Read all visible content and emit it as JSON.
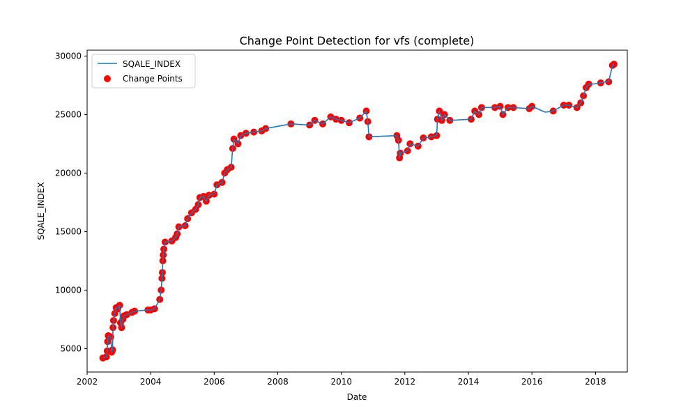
{
  "chart_data": {
    "type": "line",
    "title": "Change Point Detection for vfs (complete)",
    "xlabel": "Date",
    "ylabel": "SQALE_INDEX",
    "xlim": [
      "2002-01-01",
      "2019-01-01"
    ],
    "ylim": [
      3000,
      30500
    ],
    "xticks": [
      "2002",
      "2004",
      "2006",
      "2008",
      "2010",
      "2012",
      "2014",
      "2016",
      "2018"
    ],
    "yticks": [
      5000,
      10000,
      15000,
      20000,
      25000,
      30000
    ],
    "legend": {
      "placement": "top-left",
      "entries": [
        "SQALE_INDEX",
        "Change Points"
      ]
    },
    "colors": {
      "line": "#1f77b4",
      "points": "#ff0000"
    },
    "series": [
      {
        "name": "SQALE_INDEX",
        "kind": "line",
        "points": [
          [
            "2002-07-01",
            4200
          ],
          [
            "2002-08-10",
            4300
          ],
          [
            "2002-08-20",
            4800
          ],
          [
            "2002-08-25",
            5600
          ],
          [
            "2002-09-01",
            6100
          ],
          [
            "2002-10-01",
            6000
          ],
          [
            "2002-10-10",
            4700
          ],
          [
            "2002-10-20",
            4900
          ],
          [
            "2002-10-25",
            6800
          ],
          [
            "2002-11-01",
            7400
          ],
          [
            "2002-11-15",
            8000
          ],
          [
            "2002-12-01",
            8500
          ],
          [
            "2002-12-20",
            8400
          ],
          [
            "2003-01-10",
            8700
          ],
          [
            "2003-01-20",
            7200
          ],
          [
            "2003-02-01",
            6800
          ],
          [
            "2003-02-15",
            7500
          ],
          [
            "2003-03-01",
            7800
          ],
          [
            "2003-04-01",
            7900
          ],
          [
            "2003-06-01",
            8100
          ],
          [
            "2003-07-01",
            8200
          ],
          [
            "2003-12-01",
            8300
          ],
          [
            "2004-01-01",
            8300
          ],
          [
            "2004-02-15",
            8400
          ],
          [
            "2004-04-15",
            9200
          ],
          [
            "2004-05-01",
            10000
          ],
          [
            "2004-05-10",
            11000
          ],
          [
            "2004-05-15",
            11500
          ],
          [
            "2004-05-20",
            12500
          ],
          [
            "2004-05-25",
            13000
          ],
          [
            "2004-06-01",
            13500
          ],
          [
            "2004-06-15",
            14100
          ],
          [
            "2004-09-01",
            14200
          ],
          [
            "2004-10-15",
            14500
          ],
          [
            "2004-11-01",
            14800
          ],
          [
            "2004-11-20",
            15400
          ],
          [
            "2005-02-01",
            15500
          ],
          [
            "2005-03-01",
            16100
          ],
          [
            "2005-04-15",
            16600
          ],
          [
            "2005-06-01",
            16900
          ],
          [
            "2005-07-01",
            17300
          ],
          [
            "2005-07-20",
            17900
          ],
          [
            "2005-09-01",
            18000
          ],
          [
            "2005-10-01",
            17600
          ],
          [
            "2005-11-01",
            18100
          ],
          [
            "2006-01-01",
            18200
          ],
          [
            "2006-02-01",
            19000
          ],
          [
            "2006-04-01",
            19200
          ],
          [
            "2006-05-01",
            20000
          ],
          [
            "2006-06-01",
            20300
          ],
          [
            "2006-07-15",
            20500
          ],
          [
            "2006-08-01",
            22100
          ],
          [
            "2006-08-15",
            22900
          ],
          [
            "2006-10-01",
            22500
          ],
          [
            "2006-11-01",
            23200
          ],
          [
            "2007-01-01",
            23400
          ],
          [
            "2007-04-01",
            23500
          ],
          [
            "2007-07-01",
            23600
          ],
          [
            "2007-08-15",
            23800
          ],
          [
            "2008-06-01",
            24200
          ],
          [
            "2009-01-01",
            24100
          ],
          [
            "2009-03-01",
            24500
          ],
          [
            "2009-06-01",
            24200
          ],
          [
            "2009-09-01",
            24800
          ],
          [
            "2009-11-01",
            24600
          ],
          [
            "2010-01-01",
            24500
          ],
          [
            "2010-04-01",
            24300
          ],
          [
            "2010-08-01",
            24700
          ],
          [
            "2010-10-15",
            25300
          ],
          [
            "2010-11-01",
            24400
          ],
          [
            "2010-11-15",
            23100
          ],
          [
            "2011-10-01",
            23200
          ],
          [
            "2011-10-20",
            22800
          ],
          [
            "2011-11-01",
            21300
          ],
          [
            "2011-11-10",
            21700
          ],
          [
            "2012-02-01",
            21900
          ],
          [
            "2012-03-01",
            22500
          ],
          [
            "2012-06-01",
            22300
          ],
          [
            "2012-08-01",
            23000
          ],
          [
            "2012-11-01",
            23100
          ],
          [
            "2013-01-01",
            23200
          ],
          [
            "2013-01-10",
            24600
          ],
          [
            "2013-02-01",
            25300
          ],
          [
            "2013-03-01",
            24500
          ],
          [
            "2013-04-01",
            25000
          ],
          [
            "2013-06-01",
            24500
          ],
          [
            "2014-02-01",
            24600
          ],
          [
            "2014-03-15",
            25300
          ],
          [
            "2014-05-01",
            25000
          ],
          [
            "2014-06-01",
            25600
          ],
          [
            "2014-11-01",
            25600
          ],
          [
            "2015-01-01",
            25700
          ],
          [
            "2015-02-01",
            25000
          ],
          [
            "2015-04-01",
            25600
          ],
          [
            "2015-06-01",
            25600
          ],
          [
            "2015-12-01",
            25500
          ],
          [
            "2016-01-01",
            25700
          ],
          [
            "2016-06-01",
            25200
          ],
          [
            "2016-09-01",
            25300
          ],
          [
            "2017-01-01",
            25800
          ],
          [
            "2017-03-01",
            25800
          ],
          [
            "2017-06-01",
            25600
          ],
          [
            "2017-07-15",
            26000
          ],
          [
            "2017-08-15",
            26600
          ],
          [
            "2017-09-15",
            27300
          ],
          [
            "2017-10-15",
            27600
          ],
          [
            "2017-12-01",
            27600
          ],
          [
            "2018-03-01",
            27700
          ],
          [
            "2018-05-01",
            27800
          ],
          [
            "2018-06-01",
            27800
          ],
          [
            "2018-07-15",
            29200
          ],
          [
            "2018-08-01",
            29300
          ]
        ]
      },
      {
        "name": "Change Points",
        "kind": "scatter",
        "points": [
          [
            "2002-07-01",
            4200
          ],
          [
            "2002-08-10",
            4300
          ],
          [
            "2002-08-20",
            4800
          ],
          [
            "2002-08-25",
            5600
          ],
          [
            "2002-09-01",
            6100
          ],
          [
            "2002-10-01",
            6000
          ],
          [
            "2002-10-10",
            4700
          ],
          [
            "2002-10-20",
            4900
          ],
          [
            "2002-10-25",
            6800
          ],
          [
            "2002-11-01",
            7400
          ],
          [
            "2002-11-15",
            8000
          ],
          [
            "2002-12-01",
            8500
          ],
          [
            "2002-12-20",
            8400
          ],
          [
            "2003-01-10",
            8700
          ],
          [
            "2003-01-20",
            7200
          ],
          [
            "2003-02-01",
            6800
          ],
          [
            "2003-02-15",
            7500
          ],
          [
            "2003-03-01",
            7800
          ],
          [
            "2003-04-01",
            7900
          ],
          [
            "2003-06-01",
            8100
          ],
          [
            "2003-07-01",
            8200
          ],
          [
            "2003-12-01",
            8300
          ],
          [
            "2004-01-01",
            8300
          ],
          [
            "2004-02-15",
            8400
          ],
          [
            "2004-04-15",
            9200
          ],
          [
            "2004-05-01",
            10000
          ],
          [
            "2004-05-10",
            11000
          ],
          [
            "2004-05-15",
            11500
          ],
          [
            "2004-05-20",
            12500
          ],
          [
            "2004-05-25",
            13000
          ],
          [
            "2004-06-01",
            13500
          ],
          [
            "2004-06-15",
            14100
          ],
          [
            "2004-09-01",
            14200
          ],
          [
            "2004-10-15",
            14500
          ],
          [
            "2004-11-01",
            14800
          ],
          [
            "2004-11-20",
            15400
          ],
          [
            "2005-02-01",
            15500
          ],
          [
            "2005-03-01",
            16100
          ],
          [
            "2005-04-15",
            16600
          ],
          [
            "2005-06-01",
            16900
          ],
          [
            "2005-07-01",
            17300
          ],
          [
            "2005-07-20",
            17900
          ],
          [
            "2005-09-01",
            18000
          ],
          [
            "2005-10-01",
            17600
          ],
          [
            "2005-11-01",
            18100
          ],
          [
            "2006-01-01",
            18200
          ],
          [
            "2006-02-01",
            19000
          ],
          [
            "2006-04-01",
            19200
          ],
          [
            "2006-05-01",
            20000
          ],
          [
            "2006-06-01",
            20300
          ],
          [
            "2006-07-15",
            20500
          ],
          [
            "2006-08-01",
            22100
          ],
          [
            "2006-08-15",
            22900
          ],
          [
            "2006-10-01",
            22500
          ],
          [
            "2006-11-01",
            23200
          ],
          [
            "2007-01-01",
            23400
          ],
          [
            "2007-04-01",
            23500
          ],
          [
            "2007-07-01",
            23600
          ],
          [
            "2007-08-15",
            23800
          ],
          [
            "2008-06-01",
            24200
          ],
          [
            "2009-01-01",
            24100
          ],
          [
            "2009-03-01",
            24500
          ],
          [
            "2009-06-01",
            24200
          ],
          [
            "2009-09-01",
            24800
          ],
          [
            "2009-11-01",
            24600
          ],
          [
            "2010-01-01",
            24500
          ],
          [
            "2010-04-01",
            24300
          ],
          [
            "2010-08-01",
            24700
          ],
          [
            "2010-10-15",
            25300
          ],
          [
            "2010-11-01",
            24400
          ],
          [
            "2010-11-15",
            23100
          ],
          [
            "2011-10-01",
            23200
          ],
          [
            "2011-10-20",
            22800
          ],
          [
            "2011-11-01",
            21300
          ],
          [
            "2011-11-10",
            21700
          ],
          [
            "2012-02-01",
            21900
          ],
          [
            "2012-03-01",
            22500
          ],
          [
            "2012-06-01",
            22300
          ],
          [
            "2012-08-01",
            23000
          ],
          [
            "2012-11-01",
            23100
          ],
          [
            "2013-01-01",
            23200
          ],
          [
            "2013-01-10",
            24600
          ],
          [
            "2013-02-01",
            25300
          ],
          [
            "2013-03-01",
            24500
          ],
          [
            "2013-04-01",
            25000
          ],
          [
            "2013-06-01",
            24500
          ],
          [
            "2014-02-01",
            24600
          ],
          [
            "2014-03-15",
            25300
          ],
          [
            "2014-05-01",
            25000
          ],
          [
            "2014-06-01",
            25600
          ],
          [
            "2014-11-01",
            25600
          ],
          [
            "2015-01-01",
            25700
          ],
          [
            "2015-02-01",
            25000
          ],
          [
            "2015-04-01",
            25600
          ],
          [
            "2015-06-01",
            25600
          ],
          [
            "2015-12-01",
            25500
          ],
          [
            "2016-01-01",
            25700
          ],
          [
            "2016-09-01",
            25300
          ],
          [
            "2017-01-01",
            25800
          ],
          [
            "2017-03-01",
            25800
          ],
          [
            "2017-06-01",
            25600
          ],
          [
            "2017-07-15",
            26000
          ],
          [
            "2017-08-15",
            26600
          ],
          [
            "2017-09-15",
            27300
          ],
          [
            "2017-10-15",
            27600
          ],
          [
            "2018-03-01",
            27700
          ],
          [
            "2018-06-01",
            27800
          ],
          [
            "2018-07-15",
            29200
          ],
          [
            "2018-08-01",
            29300
          ]
        ]
      }
    ]
  }
}
